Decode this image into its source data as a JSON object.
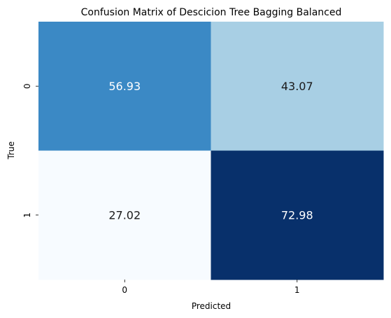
{
  "chart_data": {
    "type": "heatmap",
    "title": "Confusion Matrix of Descicion Tree Bagging Balanced",
    "xlabel": "Predicted",
    "ylabel": "True",
    "x_categories": [
      "0",
      "1"
    ],
    "y_categories": [
      "0",
      "1"
    ],
    "values": [
      [
        56.93,
        43.07
      ],
      [
        27.02,
        72.98
      ]
    ],
    "value_labels": [
      [
        "56.93",
        "43.07"
      ],
      [
        "27.02",
        "72.98"
      ]
    ],
    "colormap": "Blues",
    "color_range": [
      27.02,
      72.98
    ],
    "colorbar": false,
    "colors": {
      "cells": [
        [
          "#3b89c5",
          "#a8cfe4"
        ],
        [
          "#f7fbff",
          "#08306b"
        ]
      ],
      "text_on_dark": "#ffffff",
      "text_on_light": "#1a1a1a"
    }
  }
}
